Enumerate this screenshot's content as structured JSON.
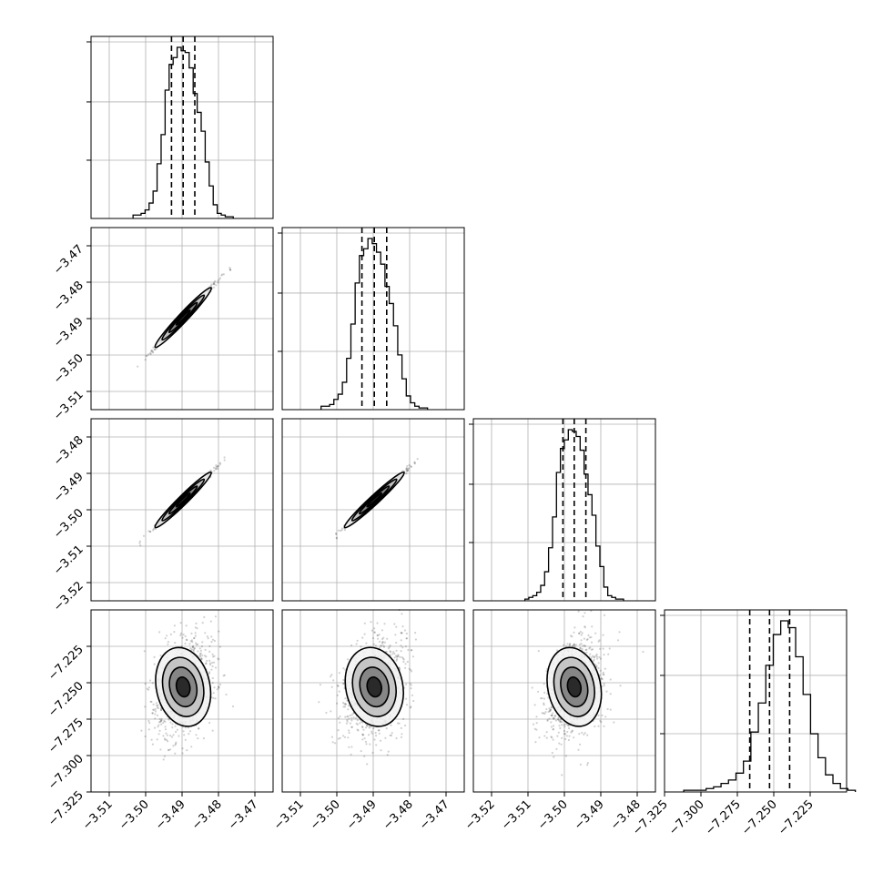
{
  "chart_data": {
    "type": "corner",
    "grid": true,
    "contour_levels": 4,
    "parameters": [
      {
        "range": [
          -3.515,
          -3.465
        ],
        "ticks": [
          "−3.51",
          "−3.50",
          "−3.49",
          "−3.48",
          "−3.47"
        ],
        "tick_values": [
          -3.51,
          -3.5,
          -3.49,
          -3.48,
          -3.47
        ],
        "median": -3.4897,
        "q16": -3.4929,
        "q84": -3.4865,
        "hist": [
          0.02,
          0.02,
          0.03,
          0.05,
          0.09,
          0.16,
          0.32,
          0.49,
          0.75,
          0.9,
          0.94,
          1.0,
          0.98,
          0.97,
          0.88,
          0.73,
          0.62,
          0.51,
          0.33,
          0.19,
          0.08,
          0.03,
          0.02,
          0.01,
          0.01
        ]
      },
      {
        "range": [
          -3.515,
          -3.465
        ],
        "ticks": [
          "−3.51",
          "−3.50",
          "−3.49",
          "−3.48",
          "−3.47"
        ],
        "tick_values": [
          -3.51,
          -3.5,
          -3.49,
          -3.48,
          -3.47
        ],
        "median": -3.4897,
        "q16": -3.4931,
        "q84": -3.4863,
        "hist": [
          0.02,
          0.02,
          0.03,
          0.06,
          0.09,
          0.16,
          0.3,
          0.5,
          0.74,
          0.9,
          0.94,
          1.0,
          0.97,
          0.92,
          0.85,
          0.72,
          0.62,
          0.49,
          0.32,
          0.18,
          0.08,
          0.04,
          0.02,
          0.01,
          0.01
        ]
      },
      {
        "range": [
          -3.525,
          -3.475
        ],
        "ticks": [
          "−3.52",
          "−3.51",
          "−3.50",
          "−3.49",
          "−3.48"
        ],
        "tick_values": [
          -3.52,
          -3.51,
          -3.5,
          -3.49,
          -3.48
        ],
        "median": -3.4973,
        "q16": -3.5004,
        "q84": -3.4941,
        "hist": [
          0.01,
          0.02,
          0.03,
          0.05,
          0.09,
          0.17,
          0.31,
          0.49,
          0.75,
          0.89,
          0.94,
          1.0,
          0.99,
          0.96,
          0.88,
          0.74,
          0.62,
          0.5,
          0.32,
          0.2,
          0.08,
          0.03,
          0.02,
          0.01,
          0.01
        ]
      },
      {
        "range": [
          -7.325,
          -7.2
        ],
        "ticks": [
          "−7.325",
          "−7.300",
          "−7.275",
          "−7.250",
          "−7.225"
        ],
        "tick_values": [
          -7.325,
          -7.3,
          -7.275,
          -7.25,
          -7.225
        ],
        "median": -7.2529,
        "q16": -7.2665,
        "q84": -7.2391,
        "hist": [
          0.01,
          0.01,
          0.01,
          0.02,
          0.03,
          0.05,
          0.07,
          0.11,
          0.18,
          0.35,
          0.52,
          0.74,
          0.92,
          1.0,
          0.96,
          0.79,
          0.57,
          0.34,
          0.2,
          0.1,
          0.05,
          0.02,
          0.01
        ]
      }
    ]
  }
}
